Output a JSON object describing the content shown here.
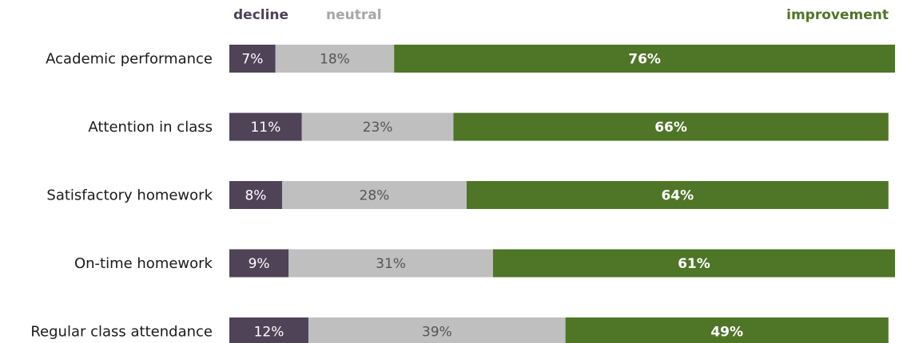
{
  "chart_data": {
    "type": "bar",
    "orientation": "horizontal",
    "stacked": true,
    "normalized_percent": true,
    "categories": [
      "Academic performance",
      "Attention in class",
      "Satisfactory homework",
      "On-time homework",
      "Regular class attendance"
    ],
    "series": [
      {
        "name": "decline",
        "values": [
          7,
          11,
          8,
          9,
          12
        ],
        "color": "#4f4358"
      },
      {
        "name": "neutral",
        "values": [
          18,
          23,
          28,
          31,
          39
        ],
        "color": "#bfbfbf"
      },
      {
        "name": "improvement",
        "values": [
          76,
          66,
          64,
          61,
          49
        ],
        "color": "#4f7527"
      }
    ],
    "value_suffix": "%",
    "legend": {
      "placement": "top"
    },
    "grid": false,
    "xlim": [
      0,
      101
    ]
  }
}
